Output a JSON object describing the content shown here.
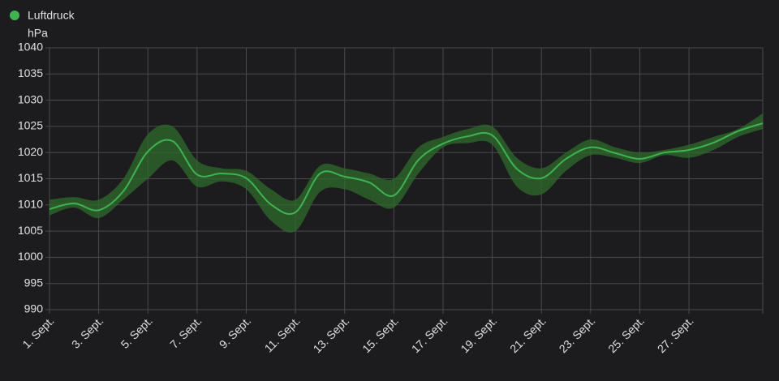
{
  "chart_data": {
    "type": "line",
    "y_label": "hPa",
    "x": [
      1,
      2,
      3,
      4,
      5,
      6,
      7,
      8,
      9,
      10,
      11,
      12,
      13,
      14,
      15,
      16,
      17,
      18,
      19,
      20,
      21,
      22,
      23,
      24,
      25,
      26,
      27,
      28,
      29,
      30
    ],
    "series": [
      {
        "name": "Luftdruck",
        "color": "#3fb34f",
        "band_color": "#2e6b2c",
        "values": [
          1009.2,
          1010.3,
          1009.0,
          1012.6,
          1020.2,
          1022.2,
          1015.8,
          1016.0,
          1015.1,
          1010.1,
          1008.6,
          1016.0,
          1015.4,
          1014.3,
          1011.8,
          1018.6,
          1021.7,
          1023.1,
          1023.3,
          1016.9,
          1015.1,
          1018.8,
          1021.0,
          1019.9,
          1018.8,
          1020.0,
          1020.5,
          1021.9,
          1024.1,
          1025.6
        ],
        "min": [
          1008,
          1009.5,
          1007.5,
          1011,
          1015,
          1018.5,
          1013.5,
          1014.5,
          1013,
          1007,
          1005,
          1012.5,
          1013,
          1011,
          1009.5,
          1016,
          1021,
          1021.8,
          1021.5,
          1013.5,
          1012,
          1016.5,
          1019.5,
          1019,
          1018,
          1019.5,
          1019,
          1020.5,
          1023,
          1024.5
        ],
        "max": [
          1011,
          1011.5,
          1011,
          1015,
          1023.5,
          1025,
          1018.5,
          1017,
          1016.5,
          1013,
          1011,
          1017.5,
          1017,
          1016,
          1015,
          1021,
          1023,
          1024.5,
          1025,
          1019,
          1017,
          1020,
          1022.5,
          1021,
          1020,
          1020.5,
          1021.5,
          1023,
          1024.5,
          1027.5
        ]
      }
    ],
    "xlim": [
      1,
      30
    ],
    "xticks": [
      {
        "value": 1,
        "label": "1. Sept."
      },
      {
        "value": 3,
        "label": "3. Sept."
      },
      {
        "value": 5,
        "label": "5. Sept."
      },
      {
        "value": 7,
        "label": "7. Sept."
      },
      {
        "value": 9,
        "label": "9. Sept."
      },
      {
        "value": 11,
        "label": "11. Sept."
      },
      {
        "value": 13,
        "label": "13. Sept."
      },
      {
        "value": 15,
        "label": "15. Sept."
      },
      {
        "value": 17,
        "label": "17. Sept."
      },
      {
        "value": 19,
        "label": "19. Sept."
      },
      {
        "value": 21,
        "label": "21. Sept."
      },
      {
        "value": 23,
        "label": "23. Sept."
      },
      {
        "value": 25,
        "label": "25. Sept."
      },
      {
        "value": 27,
        "label": "27. Sept."
      }
    ],
    "ylim": [
      990,
      1040
    ],
    "yticks": [
      990,
      995,
      1000,
      1005,
      1010,
      1015,
      1020,
      1025,
      1030,
      1035,
      1040
    ],
    "grid": true
  }
}
